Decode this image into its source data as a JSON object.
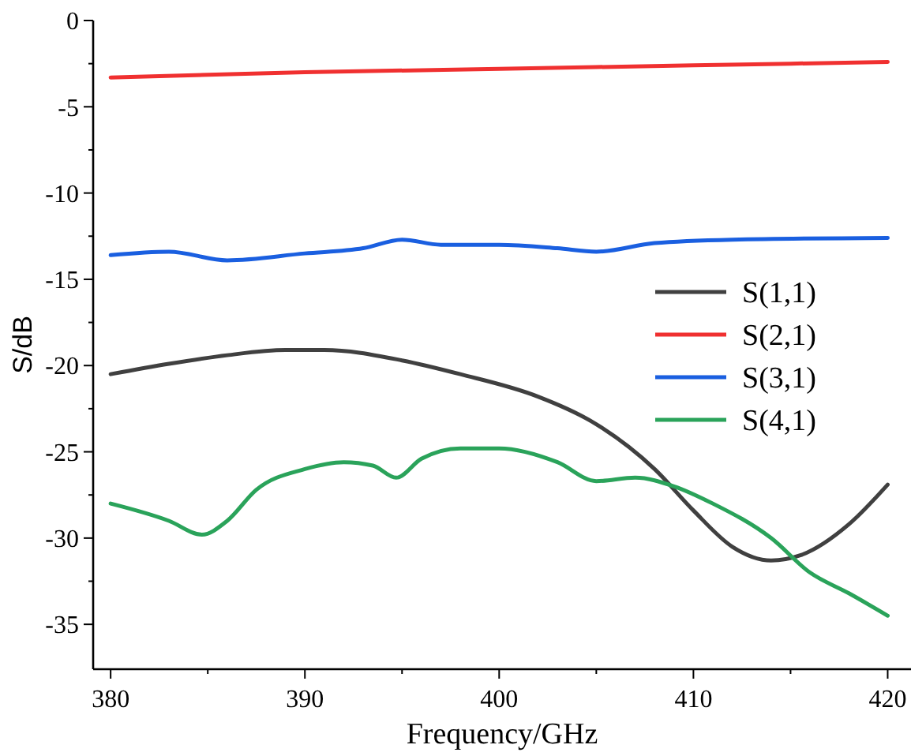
{
  "chart_data": {
    "type": "line",
    "xlabel": "Frequency/GHz",
    "ylabel": "S/dB",
    "xlim": [
      379.1,
      421.2
    ],
    "ylim": [
      -37.6,
      0
    ],
    "xticks": [
      380,
      {
        "value": 385,
        "label": null
      },
      390,
      {
        "value": 395,
        "label": null
      },
      400,
      {
        "value": 405,
        "label": null
      },
      410,
      {
        "value": 415,
        "label": null
      },
      420
    ],
    "yticks": [
      0,
      {
        "value": -2.5,
        "label": null
      },
      -5,
      {
        "value": -7.5,
        "label": null
      },
      -10,
      {
        "value": -12.5,
        "label": null
      },
      -15,
      {
        "value": -17.5,
        "label": null
      },
      -20,
      {
        "value": -22.5,
        "label": null
      },
      -25,
      {
        "value": -27.5,
        "label": null
      },
      -30,
      {
        "value": -32.5,
        "label": null
      },
      -35
    ],
    "grid": false,
    "legend": "right",
    "marker": "none",
    "line_style": "solid",
    "series": [
      {
        "name": "S(1,1)",
        "color": "#404040",
        "x": [
          380,
          383,
          386,
          389,
          391,
          395,
          398,
          402,
          405,
          408,
          410,
          412,
          414,
          415.5,
          418,
          420
        ],
        "values": [
          -20.5,
          -19.9,
          -19.4,
          -19.1,
          -19.1,
          -19.7,
          -20.5,
          -21.8,
          -23.4,
          -26,
          -28.4,
          -30.5,
          -31.3,
          -31.0,
          -29.2,
          -26.9
        ]
      },
      {
        "name": "S(2,1)",
        "color": "#f03030",
        "x": [
          380,
          390,
          400,
          410,
          420
        ],
        "values": [
          -3.3,
          -3.0,
          -2.8,
          -2.6,
          -2.4
        ]
      },
      {
        "name": "S(3,1)",
        "color": "#1a5fe0",
        "x": [
          380,
          383,
          386,
          390,
          393,
          395,
          397,
          400,
          403,
          405,
          408,
          412,
          420
        ],
        "values": [
          -13.6,
          -13.4,
          -13.9,
          -13.5,
          -13.2,
          -12.7,
          -13.0,
          -13.0,
          -13.2,
          -13.4,
          -12.9,
          -12.7,
          -12.6
        ]
      },
      {
        "name": "S(4,1)",
        "color": "#2aa35a",
        "x": [
          380,
          383,
          384.7,
          386,
          387.5,
          390,
          392,
          393.5,
          394.7,
          396,
          398,
          400,
          403,
          405,
          407,
          409,
          411,
          414,
          416,
          418,
          420
        ],
        "values": [
          -28.0,
          -29.0,
          -29.8,
          -29.0,
          -27.2,
          -26.0,
          -25.6,
          -25.8,
          -26.5,
          -25.4,
          -24.8,
          -24.8,
          -25.6,
          -26.7,
          -26.5,
          -27.0,
          -28.0,
          -30.0,
          -32.0,
          -33.2,
          -34.5
        ]
      }
    ]
  }
}
